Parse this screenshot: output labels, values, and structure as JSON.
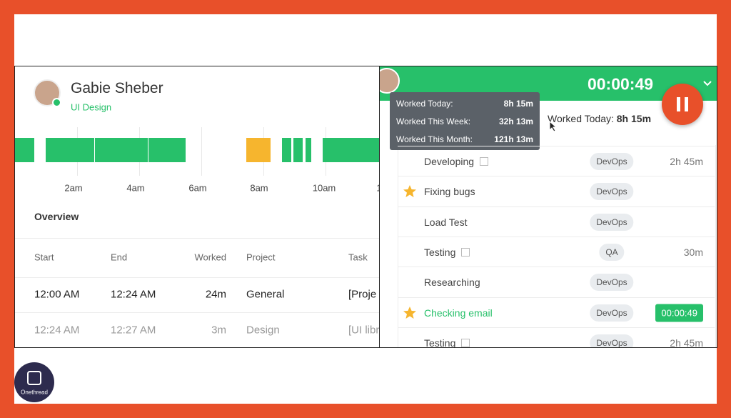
{
  "profile": {
    "name": "Gabie Sheber",
    "role": "UI Design"
  },
  "timeline": {
    "ticks": [
      "2am",
      "4am",
      "6am",
      "8am",
      "10am",
      "1"
    ]
  },
  "overview": {
    "title": "Overview",
    "columns": [
      "Start",
      "End",
      "Worked",
      "Project",
      "Task"
    ],
    "rows": [
      [
        "12:00 AM",
        "12:24 AM",
        "24m",
        "General",
        "[Proje"
      ],
      [
        "12:24 AM",
        "12:27 AM",
        "3m",
        "Design",
        "[UI libr"
      ]
    ]
  },
  "timer": {
    "time": "00:00:49"
  },
  "tooltip": {
    "rows": [
      [
        "Worked Today:",
        "8h 15m"
      ],
      [
        "Worked This Week:",
        "32h 13m"
      ],
      [
        "Worked This Month:",
        "121h 13m"
      ]
    ]
  },
  "summary": {
    "label": "Worked Today:",
    "value": "8h 15m"
  },
  "tasks": [
    {
      "name": "Developing",
      "tag": "DevOps",
      "duration": "2h 45m",
      "link": true
    },
    {
      "name": "Fixing bugs",
      "tag": "DevOps",
      "starred": true
    },
    {
      "name": "Load Test",
      "tag": "DevOps"
    },
    {
      "name": "Testing",
      "tag": "QA",
      "duration": "30m",
      "link": true
    },
    {
      "name": "Researching",
      "tag": "DevOps"
    },
    {
      "name": "Checking email",
      "tag": "DevOps",
      "duration": "00:00:49",
      "starred": true,
      "active": true
    },
    {
      "name": "Testing",
      "tag": "DevOps",
      "duration": "2h 45m",
      "link": true
    }
  ],
  "brand": "Onethread"
}
